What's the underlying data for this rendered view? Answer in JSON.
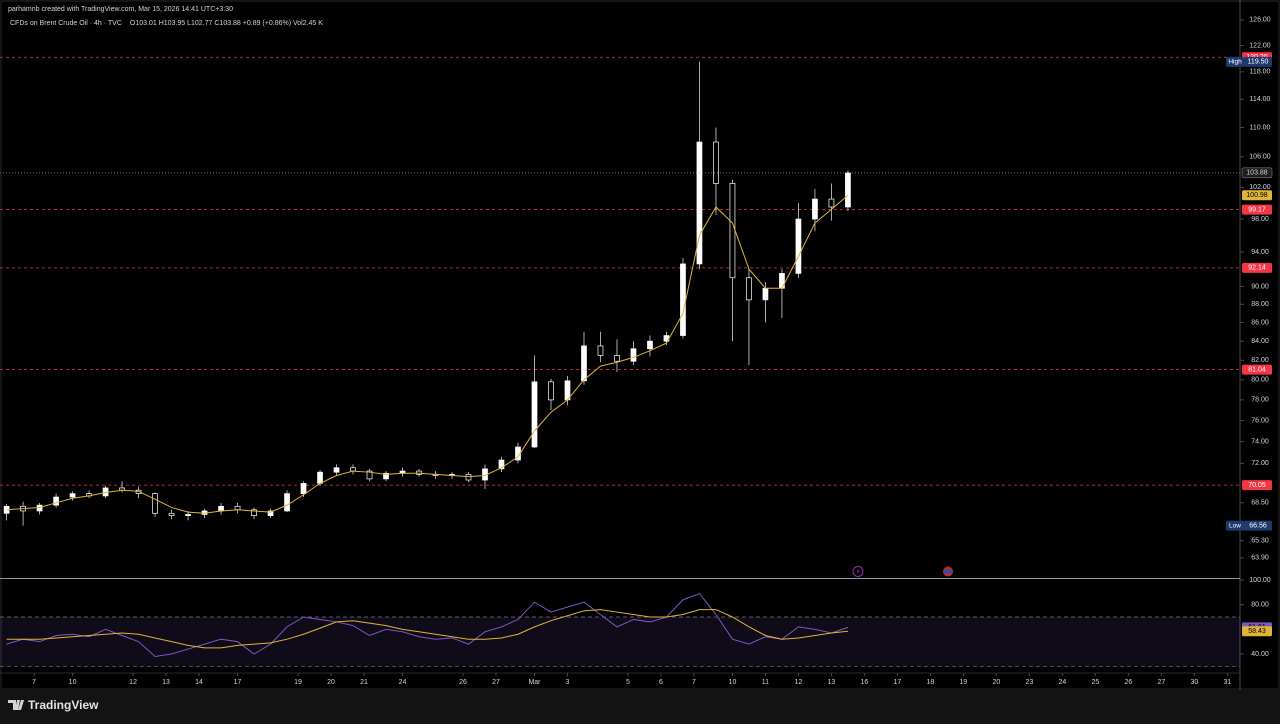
{
  "header": {
    "author_line": "parhamnb created with TradingView.com, Mar 15, 2026 14:41 UTC+3:30"
  },
  "footer": {
    "brand": "TradingView"
  },
  "chart_data": [
    {
      "type": "candlestick",
      "title": "CFDs on Brent Crude Oil · 4h · TVC",
      "ohlc_text": "O103.01  H103.95  L102.77  C103.88  +0.89 (+0.86%)  Vol2.45 K",
      "log_scale": true,
      "up_color": "#ffffff",
      "down_color": "#000000",
      "wick_color": "#d1d4dc",
      "ma_color": "#e0b43a",
      "xlim": [
        -6.2,
        219.3
      ],
      "xticks": [
        {
          "value": 0,
          "label": "7"
        },
        {
          "value": 7,
          "label": "10"
        },
        {
          "value": 18,
          "label": "12"
        },
        {
          "value": 24,
          "label": "13"
        },
        {
          "value": 30,
          "label": "14"
        },
        {
          "value": 37,
          "label": "17"
        },
        {
          "value": 48,
          "label": "19"
        },
        {
          "value": 54,
          "label": "20"
        },
        {
          "value": 60,
          "label": "21"
        },
        {
          "value": 67,
          "label": "24"
        },
        {
          "value": 78,
          "label": "26"
        },
        {
          "value": 84,
          "label": "27"
        },
        {
          "value": 91,
          "label": "Mar"
        },
        {
          "value": 97,
          "label": "3"
        },
        {
          "value": 108,
          "label": "5"
        },
        {
          "value": 114,
          "label": "6"
        },
        {
          "value": 120,
          "label": "7"
        },
        {
          "value": 127,
          "label": "10"
        },
        {
          "value": 133,
          "label": "11"
        },
        {
          "value": 139,
          "label": "12"
        },
        {
          "value": 145,
          "label": "13"
        },
        {
          "value": 151,
          "label": "16"
        },
        {
          "value": 157,
          "label": "17"
        },
        {
          "value": 163,
          "label": "18"
        },
        {
          "value": 169,
          "label": "19"
        },
        {
          "value": 175,
          "label": "20"
        },
        {
          "value": 181,
          "label": "23"
        },
        {
          "value": 187,
          "label": "24"
        },
        {
          "value": 193,
          "label": "25"
        },
        {
          "value": 199,
          "label": "26"
        },
        {
          "value": 205,
          "label": "27"
        },
        {
          "value": 211,
          "label": "30"
        },
        {
          "value": 217,
          "label": "31"
        }
      ],
      "ylim": [
        62.3,
        129.2
      ],
      "yticks": [
        {
          "value": 126,
          "label": "126.00"
        },
        {
          "value": 122,
          "label": "122.00"
        },
        {
          "value": 118,
          "label": "118.00"
        },
        {
          "value": 114,
          "label": "114.00"
        },
        {
          "value": 110,
          "label": "110.00"
        },
        {
          "value": 106,
          "label": "106.00"
        },
        {
          "value": 102,
          "label": "102.00"
        },
        {
          "value": 98,
          "label": "98.00"
        },
        {
          "value": 94,
          "label": "94.00"
        },
        {
          "value": 90,
          "label": "90.00"
        },
        {
          "value": 88,
          "label": "88.00"
        },
        {
          "value": 86,
          "label": "86.00"
        },
        {
          "value": 84,
          "label": "84.00"
        },
        {
          "value": 82,
          "label": "82.00"
        },
        {
          "value": 80,
          "label": "80.00"
        },
        {
          "value": 78,
          "label": "78.00"
        },
        {
          "value": 76,
          "label": "76.00"
        },
        {
          "value": 74,
          "label": "74.00"
        },
        {
          "value": 72,
          "label": "72.00"
        },
        {
          "value": 68.5,
          "label": "68.50"
        },
        {
          "value": 65.3,
          "label": "65.30"
        },
        {
          "value": 63.9,
          "label": "63.90"
        }
      ],
      "x": [
        -5,
        -2,
        1,
        4,
        7,
        10,
        13,
        16,
        19,
        22,
        25,
        28,
        31,
        34,
        37,
        40,
        43,
        46,
        49,
        52,
        55,
        58,
        61,
        64,
        67,
        70,
        73,
        76,
        79,
        82,
        85,
        88,
        91,
        94,
        97,
        100,
        103,
        106,
        109,
        112,
        115,
        118,
        121,
        124,
        127,
        130,
        133,
        136,
        139,
        142,
        145,
        148
      ],
      "open": [
        67.6,
        68.2,
        67.8,
        68.3,
        69.0,
        69.3,
        69.1,
        69.8,
        69.6,
        69.3,
        67.6,
        67.4,
        67.5,
        67.8,
        68.2,
        67.9,
        67.4,
        67.8,
        69.3,
        70.2,
        71.2,
        71.6,
        71.3,
        70.6,
        71.1,
        71.3,
        71.0,
        70.9,
        71.0,
        70.5,
        71.5,
        72.3,
        73.5,
        79.8,
        78.0,
        79.9,
        83.5,
        82.5,
        81.9,
        83.2,
        84.0,
        84.6,
        92.6,
        108.0,
        102.5,
        91.0,
        88.5,
        89.8,
        91.5,
        98.0,
        100.5,
        99.5
      ],
      "high": [
        68.4,
        68.6,
        68.5,
        69.3,
        69.5,
        69.6,
        70.0,
        70.4,
        69.9,
        69.4,
        67.9,
        67.8,
        68.0,
        68.5,
        68.5,
        68.1,
        68.0,
        69.6,
        70.4,
        71.4,
        71.9,
        71.9,
        71.5,
        71.3,
        71.6,
        71.5,
        71.3,
        71.2,
        71.2,
        71.9,
        72.6,
        73.9,
        82.5,
        80.1,
        80.4,
        85.0,
        85.0,
        84.2,
        84.0,
        84.6,
        85.0,
        93.3,
        119.5,
        110.0,
        103.0,
        92.0,
        90.5,
        92.0,
        100.0,
        101.8,
        102.5,
        104.2
      ],
      "low": [
        67.0,
        66.56,
        67.5,
        68.1,
        68.7,
        68.9,
        68.9,
        69.4,
        68.9,
        67.3,
        67.1,
        67.0,
        67.2,
        67.5,
        67.6,
        67.1,
        67.2,
        67.7,
        69.0,
        70.0,
        70.9,
        71.0,
        70.4,
        70.4,
        70.8,
        70.8,
        70.6,
        70.6,
        70.3,
        69.7,
        71.2,
        72.0,
        73.4,
        77.0,
        77.5,
        79.5,
        81.8,
        80.8,
        81.5,
        82.4,
        83.6,
        84.3,
        92.0,
        98.5,
        84.0,
        81.5,
        86.0,
        86.5,
        91.0,
        96.5,
        97.8,
        99.0
      ],
      "close": [
        68.2,
        67.8,
        68.3,
        69.0,
        69.3,
        69.1,
        69.8,
        69.6,
        69.3,
        67.6,
        67.4,
        67.5,
        67.8,
        68.2,
        67.9,
        67.4,
        67.8,
        69.3,
        70.2,
        71.2,
        71.6,
        71.3,
        70.6,
        71.1,
        71.3,
        71.0,
        70.9,
        71.0,
        70.5,
        71.5,
        72.3,
        73.5,
        79.8,
        78.0,
        79.9,
        83.5,
        82.5,
        81.9,
        83.2,
        84.0,
        84.6,
        92.6,
        108.0,
        102.5,
        91.0,
        88.5,
        89.8,
        91.5,
        98.0,
        100.5,
        99.5,
        103.88
      ],
      "ma": [
        67.9,
        68.0,
        68.1,
        68.5,
        68.9,
        69.1,
        69.4,
        69.6,
        69.5,
        68.8,
        68.1,
        67.7,
        67.6,
        67.8,
        67.9,
        67.8,
        67.7,
        68.3,
        69.2,
        70.2,
        70.9,
        71.3,
        71.2,
        71.0,
        71.1,
        71.1,
        71.0,
        70.9,
        70.8,
        70.9,
        71.6,
        72.6,
        75.0,
        76.8,
        78.0,
        80.0,
        81.4,
        81.8,
        82.3,
        83.0,
        83.8,
        87.0,
        96.0,
        99.5,
        97.5,
        92.0,
        89.8,
        89.8,
        93.5,
        97.5,
        99.2,
        100.98
      ],
      "levels": [
        {
          "value": 120.2,
          "label": "120.20"
        },
        {
          "value": 99.17,
          "label": "99.17"
        },
        {
          "value": 92.14,
          "label": "92.14"
        },
        {
          "value": 81.04,
          "label": "81.04"
        },
        {
          "value": 70.05,
          "label": "70.05"
        }
      ],
      "level_color": "#f23645",
      "extremes": [
        {
          "name": "High",
          "value": 119.5,
          "label": "119.50"
        },
        {
          "name": "Low",
          "value": 66.56,
          "label": "66.56"
        }
      ]
    },
    {
      "type": "rsi",
      "ylim": [
        25.4,
        100
      ],
      "yticks": [
        {
          "value": 100,
          "label": "100.00"
        },
        {
          "value": 80,
          "label": "80.00"
        },
        {
          "value": 40,
          "label": "40.00"
        }
      ],
      "bands": [
        70,
        30
      ],
      "series": [
        {
          "name": "RSI",
          "color": "#7e57c2",
          "values": [
            48,
            52,
            50,
            55,
            56,
            54,
            60,
            55,
            50,
            38,
            40,
            44,
            48,
            52,
            50,
            40,
            48,
            62,
            70,
            68,
            66,
            63,
            55,
            60,
            58,
            54,
            52,
            53,
            48,
            58,
            62,
            68,
            82,
            74,
            78,
            82,
            72,
            62,
            68,
            66,
            70,
            84,
            89,
            72,
            52,
            48,
            54,
            52,
            62,
            60,
            57,
            61.61
          ]
        },
        {
          "name": "RSI-based MA",
          "color": "#e0b43a",
          "values": [
            52,
            52,
            52,
            53,
            54,
            55,
            56,
            57,
            56,
            53,
            50,
            47,
            45,
            45,
            47,
            48,
            49,
            52,
            56,
            61,
            66,
            67,
            65,
            63,
            60,
            58,
            56,
            54,
            52,
            52,
            53,
            56,
            62,
            67,
            71,
            75,
            76,
            74,
            72,
            70,
            70,
            72,
            76,
            76,
            70,
            62,
            55,
            52,
            53,
            55,
            57,
            58.43
          ]
        }
      ]
    }
  ]
}
